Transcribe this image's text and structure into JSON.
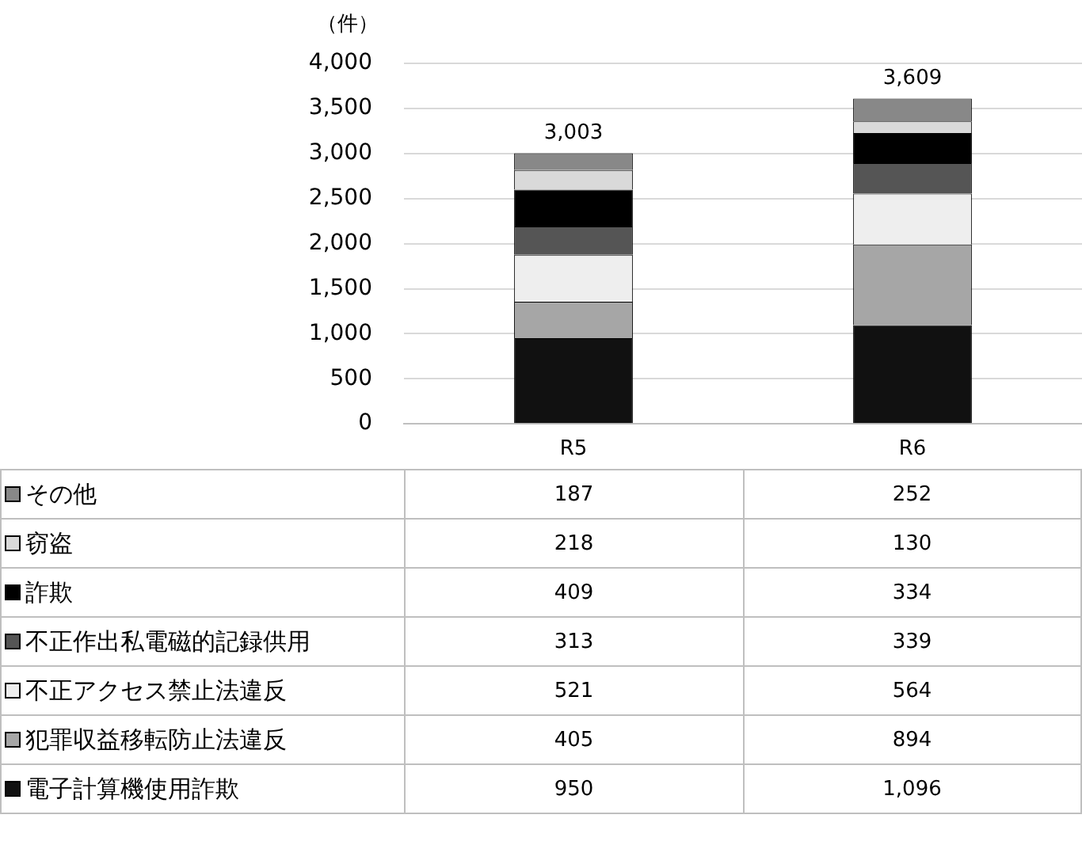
{
  "chart_data": {
    "type": "bar",
    "stacked": true,
    "ylabel": "（件）",
    "categories": [
      "R5",
      "R6"
    ],
    "series": [
      {
        "name": "電子計算機使用詐欺",
        "color": "#111111",
        "values": [
          950,
          1096
        ],
        "value_labels": [
          "950",
          "1,096"
        ]
      },
      {
        "name": "犯罪収益移転防止法違反",
        "color": "#a6a6a6",
        "values": [
          405,
          894
        ],
        "value_labels": [
          "405",
          "894"
        ]
      },
      {
        "name": "不正アクセス禁止法違反",
        "color": "#eeeeee",
        "values": [
          521,
          564
        ],
        "value_labels": [
          "521",
          "564"
        ]
      },
      {
        "name": "不正作出私電磁的記録供用",
        "color": "#555555",
        "values": [
          313,
          339
        ],
        "value_labels": [
          "313",
          "339"
        ]
      },
      {
        "name": "詐欺",
        "color": "#000000",
        "values": [
          409,
          334
        ],
        "value_labels": [
          "409",
          "334"
        ]
      },
      {
        "name": "窃盗",
        "color": "#d9d9d9",
        "values": [
          218,
          130
        ],
        "value_labels": [
          "218",
          "130"
        ]
      },
      {
        "name": "その他",
        "color": "#888888",
        "values": [
          187,
          252
        ],
        "value_labels": [
          "187",
          "252"
        ]
      }
    ],
    "totals": [
      "3,003",
      "3,609"
    ],
    "ylim": [
      0,
      4000
    ],
    "yticks": [
      {
        "value": 0,
        "label": "0"
      },
      {
        "value": 500,
        "label": "500"
      },
      {
        "value": 1000,
        "label": "1,000"
      },
      {
        "value": 1500,
        "label": "1,500"
      },
      {
        "value": 2000,
        "label": "2,000"
      },
      {
        "value": 2500,
        "label": "2,500"
      },
      {
        "value": 3000,
        "label": "3,000"
      },
      {
        "value": 3500,
        "label": "3,500"
      },
      {
        "value": 4000,
        "label": "4,000"
      }
    ],
    "grid": "y",
    "legend": "bottom"
  }
}
